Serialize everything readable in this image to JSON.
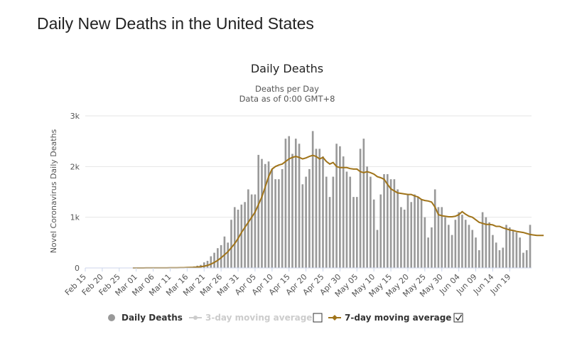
{
  "page": {
    "title": "Daily New Deaths in the United States"
  },
  "chart_data": {
    "type": "bar",
    "title": "Daily Deaths",
    "subtitle": [
      "Deaths per Day",
      "Data as of 0:00 GMT+8"
    ],
    "ylabel": "Novel Coronavirus Daily Deaths",
    "xlabel": "",
    "ylim": [
      0,
      3000
    ],
    "yticks": [
      0,
      1000,
      2000,
      3000
    ],
    "ytick_labels": [
      "0",
      "1k",
      "2k",
      "3k"
    ],
    "x_start": "Feb 15",
    "x_end": "Jun 22",
    "xtick_labels": [
      "Feb 15",
      "Feb 20",
      "Feb 25",
      "Mar 01",
      "Mar 06",
      "Mar 11",
      "Mar 16",
      "Mar 21",
      "Mar 26",
      "Mar 31",
      "Apr 05",
      "Apr 10",
      "Apr 15",
      "Apr 20",
      "Apr 25",
      "Apr 30",
      "May 05",
      "May 10",
      "May 15",
      "May 20",
      "May 25",
      "May 30",
      "Jun 04",
      "Jun 09",
      "Jun 14",
      "Jun 19"
    ],
    "grid": true,
    "legend_position": "bottom",
    "legend": [
      {
        "label": "Daily Deaths",
        "active": true,
        "color": "#999999"
      },
      {
        "label": "3-day moving average",
        "active": false,
        "color": "#cccccc",
        "checked": false
      },
      {
        "label": "7-day moving average",
        "active": true,
        "color": "#a0741a",
        "checked": true
      }
    ],
    "series": [
      {
        "name": "Daily Deaths",
        "type": "bar",
        "color": "#999999",
        "values": [
          0,
          0,
          0,
          0,
          0,
          0,
          0,
          0,
          0,
          0,
          0,
          0,
          0,
          0,
          1,
          0,
          0,
          0,
          1,
          1,
          1,
          2,
          3,
          2,
          4,
          3,
          4,
          5,
          8,
          12,
          15,
          20,
          30,
          45,
          60,
          110,
          140,
          230,
          300,
          390,
          450,
          620,
          500,
          950,
          1200,
          1150,
          1250,
          1300,
          1550,
          1450,
          1450,
          2230,
          2150,
          2050,
          2100,
          1950,
          1750,
          1750,
          1950,
          2550,
          2600,
          2250,
          2550,
          2450,
          1650,
          1800,
          1950,
          2700,
          2350,
          2350,
          2200,
          1800,
          1400,
          1800,
          2450,
          2400,
          2200,
          1900,
          1800,
          1400,
          1400,
          2350,
          2550,
          2000,
          1800,
          1350,
          750,
          1450,
          1850,
          1850,
          1750,
          1750,
          1550,
          1200,
          1150,
          1450,
          1300,
          1450,
          1400,
          1350,
          1000,
          600,
          800,
          1550,
          1200,
          1200,
          1000,
          850,
          650,
          950,
          1100,
          1050,
          950,
          850,
          750,
          600,
          350,
          1100,
          1000,
          900,
          650,
          500,
          350,
          400,
          850,
          800,
          750,
          700,
          600,
          300,
          350,
          850
        ]
      },
      {
        "name": "7-day moving average",
        "type": "line",
        "color": "#a0741a",
        "values": [
          0,
          0,
          0,
          0,
          0,
          0,
          0,
          0,
          0,
          0,
          0,
          0,
          0,
          0,
          0,
          0,
          0,
          0,
          1,
          1,
          1,
          1,
          1,
          2,
          2,
          3,
          3,
          4,
          5,
          6,
          8,
          10,
          13,
          18,
          25,
          35,
          50,
          75,
          110,
          150,
          200,
          260,
          320,
          400,
          480,
          580,
          700,
          800,
          900,
          1000,
          1100,
          1250,
          1400,
          1600,
          1800,
          1950,
          2000,
          2030,
          2050,
          2100,
          2150,
          2180,
          2200,
          2180,
          2150,
          2170,
          2200,
          2220,
          2200,
          2150,
          2180,
          2100,
          2050,
          2080,
          2000,
          1980,
          1980,
          1980,
          1960,
          1950,
          1950,
          1900,
          1880,
          1900,
          1880,
          1850,
          1800,
          1780,
          1750,
          1650,
          1560,
          1520,
          1480,
          1470,
          1460,
          1450,
          1450,
          1420,
          1400,
          1350,
          1330,
          1320,
          1300,
          1200,
          1050,
          1030,
          1020,
          1010,
          1010,
          1020,
          1050,
          1110,
          1060,
          1020,
          1000,
          950,
          900,
          880,
          860,
          860,
          850,
          820,
          820,
          790,
          770,
          750,
          740,
          720,
          710,
          700,
          680,
          660,
          650,
          640,
          640,
          640
        ]
      }
    ]
  }
}
